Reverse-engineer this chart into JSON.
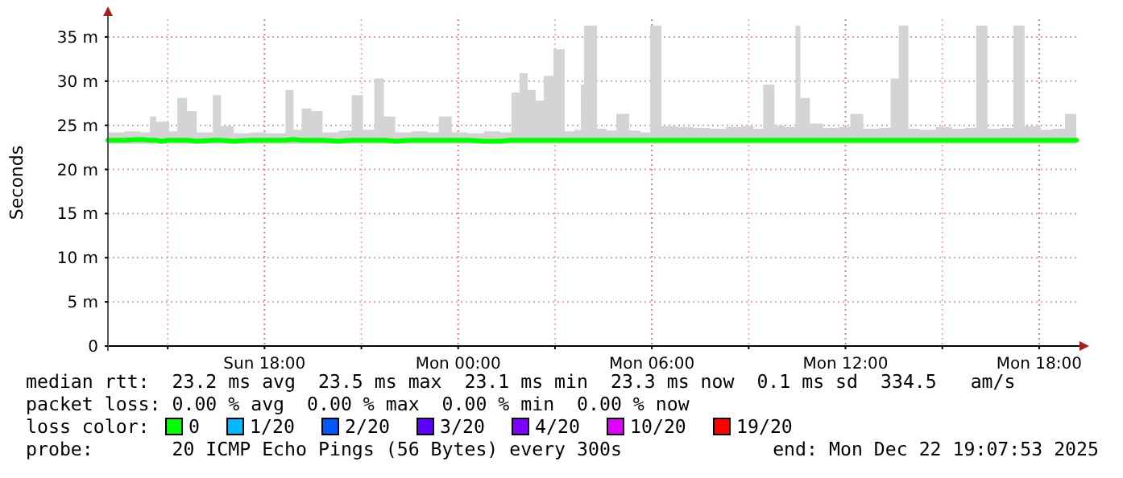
{
  "chart_data": {
    "type": "line",
    "ylabel": "Seconds",
    "legend_title": "loss color:",
    "legend": "bottom",
    "grid": true,
    "marker": "none",
    "line_style": "solid",
    "xlim": [
      "2025-12-21T13:09",
      "2025-12-22T19:09"
    ],
    "xticks": [
      {
        "value": "2025-12-21T15:00",
        "label": null
      },
      {
        "value": "2025-12-21T18:00",
        "label": "Sun 18:00"
      },
      {
        "value": "2025-12-21T21:00",
        "label": null
      },
      {
        "value": "2025-12-22T00:00",
        "label": "Mon 00:00"
      },
      {
        "value": "2025-12-22T03:00",
        "label": null
      },
      {
        "value": "2025-12-22T06:00",
        "label": "Mon 06:00"
      },
      {
        "value": "2025-12-22T09:00",
        "label": null
      },
      {
        "value": "2025-12-22T12:00",
        "label": "Mon 12:00"
      },
      {
        "value": "2025-12-22T15:00",
        "label": null
      },
      {
        "value": "2025-12-22T18:00",
        "label": "Mon 18:00"
      }
    ],
    "ylim": [
      0,
      37
    ],
    "yticks": [
      0,
      {
        "value": 5,
        "label": "5 m"
      },
      {
        "value": 10,
        "label": "10 m"
      },
      {
        "value": 15,
        "label": "15 m"
      },
      {
        "value": 20,
        "label": "20 m"
      },
      {
        "value": 25,
        "label": "25 m"
      },
      {
        "value": 30,
        "label": "30 m"
      },
      {
        "value": 35,
        "label": "35 m"
      }
    ],
    "x": [
      "2025-12-21T13:09",
      "2025-12-21T13:39",
      "2025-12-21T14:09",
      "2025-12-21T14:27",
      "2025-12-21T14:39",
      "2025-12-21T14:48",
      "2025-12-21T15:03",
      "2025-12-21T15:18",
      "2025-12-21T15:36",
      "2025-12-21T15:54",
      "2025-12-21T16:24",
      "2025-12-21T16:39",
      "2025-12-21T17:03",
      "2025-12-21T17:33",
      "2025-12-21T18:03",
      "2025-12-21T18:39",
      "2025-12-21T18:54",
      "2025-12-21T19:09",
      "2025-12-21T19:18",
      "2025-12-21T19:27",
      "2025-12-21T19:48",
      "2025-12-21T20:18",
      "2025-12-21T20:42",
      "2025-12-21T21:03",
      "2025-12-21T21:24",
      "2025-12-21T21:42",
      "2025-12-21T22:03",
      "2025-12-21T22:33",
      "2025-12-21T23:03",
      "2025-12-21T23:24",
      "2025-12-21T23:48",
      "2025-12-22T00:18",
      "2025-12-22T00:48",
      "2025-12-22T01:18",
      "2025-12-22T01:39",
      "2025-12-22T01:54",
      "2025-12-22T02:09",
      "2025-12-22T02:24",
      "2025-12-22T02:39",
      "2025-12-22T02:57",
      "2025-12-22T03:18",
      "2025-12-22T03:36",
      "2025-12-22T03:48",
      "2025-12-22T03:54",
      "2025-12-22T04:06",
      "2025-12-22T04:18",
      "2025-12-22T04:36",
      "2025-12-22T04:54",
      "2025-12-22T05:18",
      "2025-12-22T05:39",
      "2025-12-22T05:57",
      "2025-12-22T06:18",
      "2025-12-22T06:48",
      "2025-12-22T07:18",
      "2025-12-22T07:48",
      "2025-12-22T08:18",
      "2025-12-22T08:48",
      "2025-12-22T09:09",
      "2025-12-22T09:27",
      "2025-12-22T09:48",
      "2025-12-22T10:06",
      "2025-12-22T10:27",
      "2025-12-22T10:36",
      "2025-12-22T10:54",
      "2025-12-22T11:18",
      "2025-12-22T11:48",
      "2025-12-22T12:09",
      "2025-12-22T12:33",
      "2025-12-22T13:03",
      "2025-12-22T13:24",
      "2025-12-22T13:39",
      "2025-12-22T13:57",
      "2025-12-22T14:18",
      "2025-12-22T14:48",
      "2025-12-22T15:18",
      "2025-12-22T15:42",
      "2025-12-22T16:03",
      "2025-12-22T16:24",
      "2025-12-22T16:48",
      "2025-12-22T17:12",
      "2025-12-22T17:33",
      "2025-12-22T18:03",
      "2025-12-22T18:24",
      "2025-12-22T18:48",
      "2025-12-22T19:09"
    ],
    "series": [
      {
        "name": "0",
        "color": "#00ff00",
        "values": [
          23.3,
          23.3,
          23.4,
          23.3,
          23.3,
          23.2,
          23.3,
          23.3,
          23.3,
          23.2,
          23.3,
          23.3,
          23.2,
          23.3,
          23.3,
          23.3,
          23.4,
          23.3,
          23.3,
          23.3,
          23.3,
          23.2,
          23.3,
          23.3,
          23.3,
          23.3,
          23.2,
          23.3,
          23.3,
          23.3,
          23.3,
          23.3,
          23.2,
          23.2,
          23.3,
          23.3,
          23.3,
          23.3,
          23.3,
          23.3,
          23.3,
          23.3,
          23.3,
          23.3,
          23.3,
          23.3,
          23.3,
          23.3,
          23.3,
          23.3,
          23.3,
          23.3,
          23.3,
          23.3,
          23.3,
          23.3,
          23.3,
          23.3,
          23.3,
          23.3,
          23.3,
          23.3,
          23.3,
          23.3,
          23.3,
          23.3,
          23.3,
          23.3,
          23.3,
          23.3,
          23.3,
          23.3,
          23.3,
          23.3,
          23.3,
          23.3,
          23.3,
          23.3,
          23.3,
          23.3,
          23.3,
          23.3,
          23.3,
          23.3,
          23.3
        ],
        "lower": [
          22.9,
          22.9,
          22.9,
          22.9,
          22.9,
          22.9,
          22.9,
          22.9,
          22.9,
          22.9,
          22.9,
          22.9,
          22.9,
          22.9,
          22.9,
          22.9,
          22.9,
          22.9,
          22.9,
          22.9,
          22.9,
          22.9,
          22.9,
          22.9,
          22.9,
          22.9,
          22.9,
          22.9,
          22.9,
          22.9,
          22.9,
          22.9,
          22.9,
          22.9,
          22.9,
          22.9,
          22.9,
          22.9,
          22.9,
          22.9,
          22.9,
          22.9,
          22.9,
          22.9,
          22.9,
          22.9,
          22.9,
          22.9,
          22.9,
          22.9,
          22.9,
          22.9,
          22.9,
          22.9,
          22.9,
          22.9,
          22.9,
          22.9,
          22.9,
          22.9,
          22.9,
          22.9,
          22.9,
          22.9,
          22.9,
          22.9,
          22.9,
          22.9,
          22.9,
          22.9,
          22.9,
          22.9,
          22.9,
          22.9,
          22.9,
          22.9,
          22.9,
          22.9,
          22.9,
          22.9,
          22.9,
          22.9,
          22.9,
          22.9,
          22.9
        ],
        "upper": [
          24.2,
          24.3,
          24.2,
          26.0,
          25.4,
          25.4,
          24.3,
          28.1,
          26.6,
          24.2,
          28.4,
          24.9,
          24.1,
          24.2,
          24.1,
          29.0,
          24.5,
          26.9,
          26.9,
          26.6,
          24.2,
          24.4,
          28.4,
          24.5,
          30.3,
          26.0,
          24.2,
          24.3,
          24.2,
          26.0,
          24.2,
          24.1,
          24.3,
          24.2,
          28.7,
          30.9,
          29.0,
          27.8,
          30.6,
          33.6,
          24.3,
          24.5,
          29.6,
          36.3,
          36.3,
          24.6,
          24.4,
          26.3,
          24.4,
          24.2,
          36.3,
          24.9,
          24.8,
          24.7,
          24.6,
          24.8,
          24.9,
          24.6,
          29.6,
          25.0,
          24.8,
          36.3,
          28.1,
          25.2,
          24.7,
          24.8,
          26.3,
          24.6,
          24.7,
          30.3,
          36.3,
          24.6,
          24.5,
          24.8,
          24.6,
          24.7,
          36.3,
          24.6,
          24.7,
          36.3,
          24.9,
          24.5,
          24.6,
          26.3,
          24.6
        ]
      },
      {
        "name": "1/20",
        "color": "#00b8ff",
        "values": [
          null,
          null,
          null,
          null,
          null,
          null,
          null,
          null,
          null,
          null,
          null,
          null,
          null,
          null,
          null,
          null,
          null,
          null,
          null,
          null,
          null,
          null,
          null,
          null,
          null,
          null,
          null,
          null,
          null,
          null,
          null,
          null,
          null,
          null,
          null,
          null,
          null,
          null,
          null,
          null,
          null,
          null,
          null,
          null,
          null,
          null,
          null,
          null,
          null,
          null,
          null,
          null,
          null,
          null,
          null,
          null,
          null,
          null,
          null,
          null,
          null,
          null,
          null,
          null,
          null,
          null,
          null,
          null,
          null,
          null,
          null,
          null,
          null,
          null,
          null,
          null,
          null,
          null,
          null,
          null,
          null,
          null,
          null,
          null,
          null
        ]
      },
      {
        "name": "2/20",
        "color": "#0059ff",
        "values": [
          null,
          null,
          null,
          null,
          null,
          null,
          null,
          null,
          null,
          null,
          null,
          null,
          null,
          null,
          null,
          null,
          null,
          null,
          null,
          null,
          null,
          null,
          null,
          null,
          null,
          null,
          null,
          null,
          null,
          null,
          null,
          null,
          null,
          null,
          null,
          null,
          null,
          null,
          null,
          null,
          null,
          null,
          null,
          null,
          null,
          null,
          null,
          null,
          null,
          null,
          null,
          null,
          null,
          null,
          null,
          null,
          null,
          null,
          null,
          null,
          null,
          null,
          null,
          null,
          null,
          null,
          null,
          null,
          null,
          null,
          null,
          null,
          null,
          null,
          null,
          null,
          null,
          null,
          null,
          null,
          null,
          null,
          null,
          null,
          null
        ]
      },
      {
        "name": "3/20",
        "color": "#5e00ff",
        "values": [
          null,
          null,
          null,
          null,
          null,
          null,
          null,
          null,
          null,
          null,
          null,
          null,
          null,
          null,
          null,
          null,
          null,
          null,
          null,
          null,
          null,
          null,
          null,
          null,
          null,
          null,
          null,
          null,
          null,
          null,
          null,
          null,
          null,
          null,
          null,
          null,
          null,
          null,
          null,
          null,
          null,
          null,
          null,
          null,
          null,
          null,
          null,
          null,
          null,
          null,
          null,
          null,
          null,
          null,
          null,
          null,
          null,
          null,
          null,
          null,
          null,
          null,
          null,
          null,
          null,
          null,
          null,
          null,
          null,
          null,
          null,
          null,
          null,
          null,
          null,
          null,
          null,
          null,
          null,
          null,
          null,
          null,
          null,
          null,
          null
        ]
      },
      {
        "name": "4/20",
        "color": "#7e00ff",
        "values": [
          null,
          null,
          null,
          null,
          null,
          null,
          null,
          null,
          null,
          null,
          null,
          null,
          null,
          null,
          null,
          null,
          null,
          null,
          null,
          null,
          null,
          null,
          null,
          null,
          null,
          null,
          null,
          null,
          null,
          null,
          null,
          null,
          null,
          null,
          null,
          null,
          null,
          null,
          null,
          null,
          null,
          null,
          null,
          null,
          null,
          null,
          null,
          null,
          null,
          null,
          null,
          null,
          null,
          null,
          null,
          null,
          null,
          null,
          null,
          null,
          null,
          null,
          null,
          null,
          null,
          null,
          null,
          null,
          null,
          null,
          null,
          null,
          null,
          null,
          null,
          null,
          null,
          null,
          null,
          null,
          null,
          null,
          null,
          null,
          null
        ]
      },
      {
        "name": "10/20",
        "color": "#dd00ff",
        "values": [
          null,
          null,
          null,
          null,
          null,
          null,
          null,
          null,
          null,
          null,
          null,
          null,
          null,
          null,
          null,
          null,
          null,
          null,
          null,
          null,
          null,
          null,
          null,
          null,
          null,
          null,
          null,
          null,
          null,
          null,
          null,
          null,
          null,
          null,
          null,
          null,
          null,
          null,
          null,
          null,
          null,
          null,
          null,
          null,
          null,
          null,
          null,
          null,
          null,
          null,
          null,
          null,
          null,
          null,
          null,
          null,
          null,
          null,
          null,
          null,
          null,
          null,
          null,
          null,
          null,
          null,
          null,
          null,
          null,
          null,
          null,
          null,
          null,
          null,
          null,
          null,
          null,
          null,
          null,
          null,
          null,
          null,
          null,
          null,
          null
        ]
      },
      {
        "name": "19/20",
        "color": "#ff0000",
        "values": [
          null,
          null,
          null,
          null,
          null,
          null,
          null,
          null,
          null,
          null,
          null,
          null,
          null,
          null,
          null,
          null,
          null,
          null,
          null,
          null,
          null,
          null,
          null,
          null,
          null,
          null,
          null,
          null,
          null,
          null,
          null,
          null,
          null,
          null,
          null,
          null,
          null,
          null,
          null,
          null,
          null,
          null,
          null,
          null,
          null,
          null,
          null,
          null,
          null,
          null,
          null,
          null,
          null,
          null,
          null,
          null,
          null,
          null,
          null,
          null,
          null,
          null,
          null,
          null,
          null,
          null,
          null,
          null,
          null,
          null,
          null,
          null,
          null,
          null,
          null,
          null,
          null,
          null,
          null,
          null,
          null,
          null,
          null,
          null,
          null
        ]
      }
    ],
    "annotations": [
      "median rtt:  23.2 ms avg  23.5 ms max  23.1 ms min  23.3 ms now  0.1 ms sd  334.5   am/s",
      "packet loss: 0.00 % avg  0.00 % max  0.00 % min  0.00 % now",
      "probe:       20 ICMP Echo Pings (56 Bytes) every 300s",
      "end: Mon Dec 22 19:07:53 2025"
    ]
  }
}
